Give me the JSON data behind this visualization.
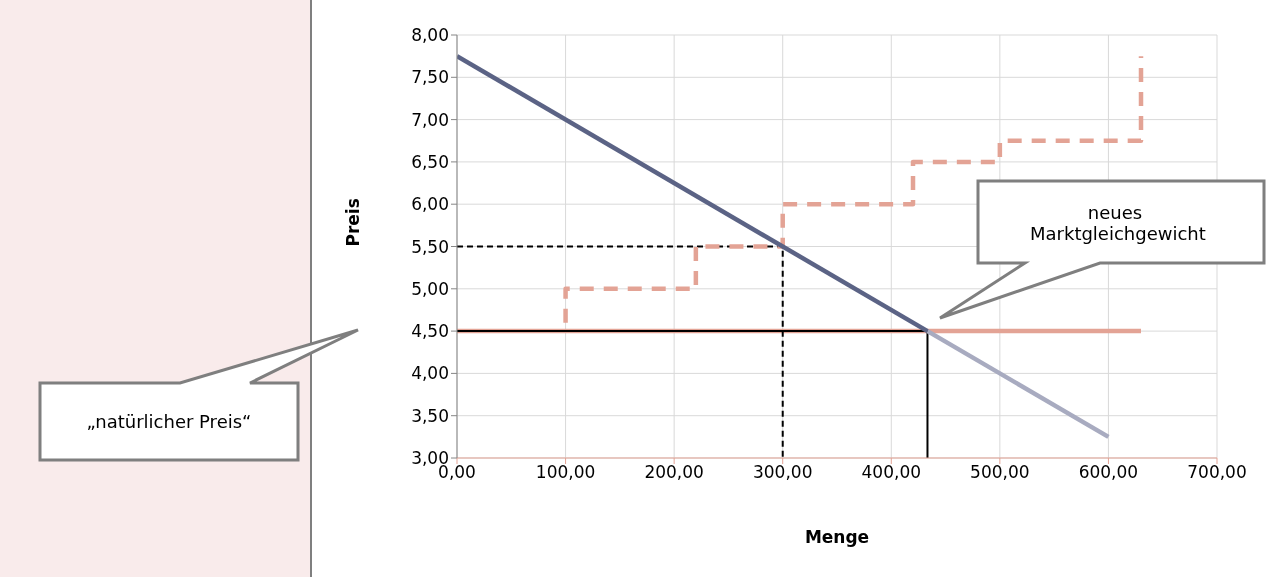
{
  "chart_data": {
    "type": "line",
    "xlabel": "Menge",
    "ylabel": "Preis",
    "xlim": [
      0,
      700
    ],
    "ylim": [
      3,
      8
    ],
    "xticks": [
      {
        "value": 0,
        "label": "0,00"
      },
      {
        "value": 100,
        "label": "100,00"
      },
      {
        "value": 200,
        "label": "200,00"
      },
      {
        "value": 300,
        "label": "300,00"
      },
      {
        "value": 400,
        "label": "400,00"
      },
      {
        "value": 500,
        "label": "500,00"
      },
      {
        "value": 600,
        "label": "600,00"
      },
      {
        "value": 700,
        "label": "700,00"
      }
    ],
    "yticks": [
      {
        "value": 3,
        "label": "3,00"
      },
      {
        "value": 3.5,
        "label": "3,50"
      },
      {
        "value": 4,
        "label": "4,00"
      },
      {
        "value": 4.5,
        "label": "4,50"
      },
      {
        "value": 5,
        "label": "5,00"
      },
      {
        "value": 5.5,
        "label": "5,50"
      },
      {
        "value": 6,
        "label": "6,00"
      },
      {
        "value": 6.5,
        "label": "6,50"
      },
      {
        "value": 7,
        "label": "7,00"
      },
      {
        "value": 7.5,
        "label": "7,50"
      },
      {
        "value": 8,
        "label": "8,00"
      }
    ],
    "grid": true,
    "marker": "none",
    "series": [
      {
        "color": "#e3a395",
        "line_style": "solid",
        "x": [
          0,
          630
        ],
        "values": [
          4.5,
          4.5
        ]
      },
      {
        "color": "#000000",
        "line_style": "solid",
        "x": [
          0,
          433.33
        ],
        "values": [
          4.5,
          4.5
        ]
      },
      {
        "color": "#000000",
        "line_style": "solid",
        "x": [
          433.33,
          433.33
        ],
        "values": [
          3,
          4.5
        ]
      },
      {
        "color": "#000000",
        "line_style": "dashed",
        "x": [
          0,
          300,
          300
        ],
        "values": [
          5.5,
          5.5,
          3
        ]
      },
      {
        "color": "#e3a395",
        "line_style": "dashed",
        "x": [
          100,
          100,
          220,
          220,
          300,
          300,
          420,
          420,
          500,
          500,
          630,
          630
        ],
        "values": [
          4.6,
          5,
          5,
          5.5,
          5.5,
          6,
          6,
          6.5,
          6.5,
          6.75,
          6.75,
          7.75
        ]
      },
      {
        "color": "#a8abc0",
        "line_style": "solid",
        "x": [
          433.33,
          600
        ],
        "values": [
          4.5,
          3.25
        ]
      },
      {
        "color": "#5b6385",
        "line_style": "solid",
        "x": [
          0,
          433.33
        ],
        "values": [
          7.75,
          4.5
        ]
      }
    ],
    "annotations": [
      "„natürlicher Preis“",
      "neues Marktgleichgewicht"
    ]
  }
}
